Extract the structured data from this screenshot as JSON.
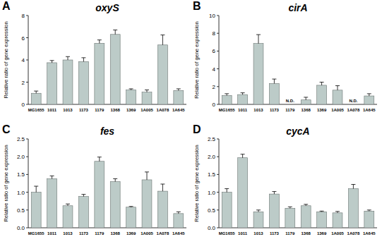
{
  "chart_data": [
    {
      "type": "bar",
      "panel": "A",
      "title": "oxyS",
      "y_label": "Relative ratio of gene expression",
      "categories": [
        "MG1655",
        "1011",
        "1013",
        "1173",
        "1179",
        "1368",
        "1369",
        "1A005",
        "1A078",
        "1A645"
      ],
      "values": [
        1.0,
        3.75,
        4.0,
        3.85,
        5.5,
        6.3,
        1.3,
        1.1,
        5.35,
        1.25
      ],
      "errors": [
        0.2,
        0.2,
        0.3,
        0.35,
        0.3,
        0.4,
        0.1,
        0.2,
        0.9,
        0.15
      ],
      "color": "#bccbc8",
      "ylim": [
        0,
        8
      ],
      "yticks": [
        0,
        2,
        4,
        6,
        8
      ],
      "grid": false
    },
    {
      "type": "bar",
      "panel": "B",
      "title": "cirA",
      "y_label": "Relative ratio of gene expression",
      "categories": [
        "MG1655",
        "1011",
        "1013",
        "1173",
        "1179",
        "1368",
        "1369",
        "1A005",
        "1A078",
        "1A645"
      ],
      "values": [
        1.0,
        1.1,
        6.85,
        2.35,
        null,
        0.5,
        2.15,
        1.6,
        null,
        0.95
      ],
      "errors": [
        0.2,
        0.2,
        1.0,
        0.5,
        null,
        0.3,
        0.35,
        0.5,
        null,
        0.25
      ],
      "value_labels": [
        null,
        null,
        null,
        null,
        "N.D.",
        null,
        null,
        null,
        "N.D.",
        null
      ],
      "color": "#bccbc8",
      "ylim": [
        0,
        10
      ],
      "yticks": [
        0,
        2,
        4,
        6,
        8,
        10
      ],
      "grid": false
    },
    {
      "type": "bar",
      "panel": "C",
      "title": "fes",
      "y_label": "Relative ratio of gene expression",
      "categories": [
        "MG1655",
        "1011",
        "1013",
        "1173",
        "1179",
        "1368",
        "1369",
        "1A005",
        "1A078",
        "1A645"
      ],
      "values": [
        1.0,
        1.38,
        0.62,
        0.88,
        1.87,
        1.3,
        0.58,
        1.35,
        1.03,
        0.4
      ],
      "errors": [
        0.17,
        0.08,
        0.05,
        0.06,
        0.12,
        0.08,
        0.02,
        0.22,
        0.2,
        0.05
      ],
      "color": "#bccbc8",
      "ylim": [
        0,
        2.5
      ],
      "yticks": [
        {
          "value": 0,
          "label": "0.0"
        },
        0.5,
        {
          "value": 1,
          "label": "1.0"
        },
        1.5,
        {
          "value": 2,
          "label": "2.0"
        },
        2.5
      ],
      "grid": false
    },
    {
      "type": "bar",
      "panel": "D",
      "title": "cycA",
      "y_label": "Relative ratio of gene expression",
      "categories": [
        "MG1655",
        "1011",
        "1013",
        "1173",
        "1179",
        "1368",
        "1369",
        "1A005",
        "1A078",
        "1A645"
      ],
      "values": [
        1.0,
        1.97,
        0.45,
        0.95,
        0.55,
        0.62,
        0.45,
        0.42,
        1.1,
        0.47
      ],
      "errors": [
        0.1,
        0.1,
        0.05,
        0.07,
        0.04,
        0.04,
        0.02,
        0.04,
        0.12,
        0.03
      ],
      "color": "#bccbc8",
      "ylim": [
        0,
        2.5
      ],
      "yticks": [
        {
          "value": 0,
          "label": "0.0"
        },
        0.5,
        {
          "value": 1,
          "label": "1.0"
        },
        1.5,
        {
          "value": 2,
          "label": "2.0"
        },
        2.5
      ],
      "grid": false
    }
  ]
}
